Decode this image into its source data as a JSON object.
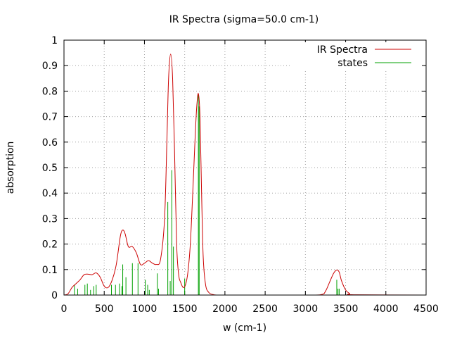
{
  "chart_data": {
    "type": "line",
    "title": "IR Spectra (sigma=50.0 cm-1)",
    "xlabel": "w (cm-1)",
    "ylabel": "absorption",
    "xlim": [
      0,
      4500
    ],
    "ylim": [
      0,
      1
    ],
    "xticks": [
      "0",
      "500",
      "1000",
      "1500",
      "2000",
      "2500",
      "3000",
      "3500",
      "4000",
      "4500"
    ],
    "yticks": [
      "0",
      "0.1",
      "0.2",
      "0.3",
      "0.4",
      "0.5",
      "0.6",
      "0.7",
      "0.8",
      "0.9",
      "1"
    ],
    "grid": true,
    "legend_position": "top-right",
    "series": [
      {
        "name": "IR Spectra",
        "kind": "line",
        "color": "#cc0000",
        "x": [
          0,
          50,
          100,
          150,
          200,
          250,
          300,
          350,
          400,
          450,
          500,
          550,
          600,
          650,
          700,
          730,
          760,
          800,
          850,
          900,
          950,
          1000,
          1050,
          1100,
          1150,
          1200,
          1250,
          1280,
          1300,
          1325,
          1350,
          1375,
          1400,
          1425,
          1450,
          1480,
          1510,
          1540,
          1570,
          1600,
          1630,
          1650,
          1670,
          1690,
          1710,
          1730,
          1760,
          1800,
          1850,
          1900,
          2000,
          3000,
          3200,
          3250,
          3300,
          3350,
          3390,
          3420,
          3450,
          3500,
          3550,
          3600,
          4500
        ],
        "y": [
          0.0,
          0.005,
          0.03,
          0.045,
          0.06,
          0.08,
          0.082,
          0.08,
          0.087,
          0.07,
          0.035,
          0.03,
          0.06,
          0.12,
          0.23,
          0.255,
          0.24,
          0.19,
          0.19,
          0.165,
          0.12,
          0.125,
          0.135,
          0.125,
          0.12,
          0.14,
          0.3,
          0.62,
          0.85,
          0.945,
          0.85,
          0.55,
          0.2,
          0.08,
          0.05,
          0.03,
          0.04,
          0.09,
          0.2,
          0.4,
          0.62,
          0.74,
          0.79,
          0.7,
          0.4,
          0.15,
          0.04,
          0.01,
          0.002,
          0.0,
          0.0,
          0.0,
          0.002,
          0.015,
          0.05,
          0.085,
          0.098,
          0.09,
          0.055,
          0.02,
          0.006,
          0.001,
          0.0
        ]
      },
      {
        "name": "states",
        "kind": "sticks",
        "color": "#00a000",
        "x": [
          130,
          170,
          260,
          290,
          330,
          370,
          400,
          590,
          640,
          690,
          720,
          730,
          770,
          850,
          920,
          1010,
          1040,
          1060,
          1160,
          1175,
          1290,
          1320,
          1340,
          1360,
          1500,
          1670,
          1680,
          3390,
          3405,
          3420
        ],
        "y": [
          0.04,
          0.025,
          0.04,
          0.045,
          0.02,
          0.035,
          0.04,
          0.04,
          0.04,
          0.045,
          0.035,
          0.12,
          0.07,
          0.125,
          0.125,
          0.06,
          0.04,
          0.02,
          0.085,
          0.025,
          0.365,
          0.055,
          0.49,
          0.19,
          0.065,
          0.785,
          0.74,
          0.06,
          0.025,
          0.025
        ]
      }
    ]
  }
}
